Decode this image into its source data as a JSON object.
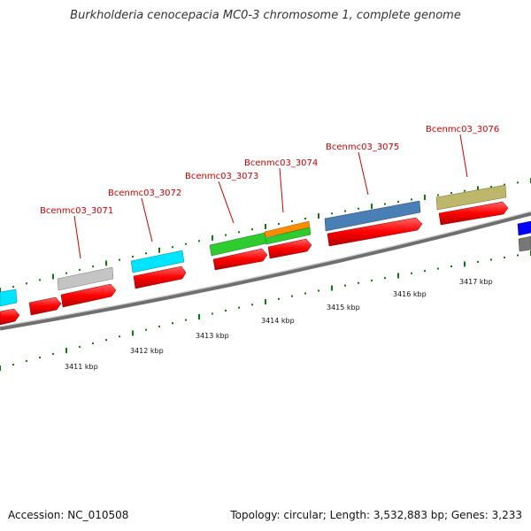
{
  "title": "Burkholderia cenocepacia MC0-3 chromosome 1, complete genome",
  "footer": {
    "accession": "Accession: NC_010508",
    "summary": "Topology: circular; Length: 3,532,883 bp; Genes: 3,233"
  },
  "ruler_labels": [
    "3411 kbp",
    "3412 kbp",
    "3413 kbp",
    "3414 kbp",
    "3415 kbp",
    "3416 kbp",
    "3417 kbp"
  ],
  "gene_labels": [
    "Bcenmc03_3071",
    "Bcenmc03_3072",
    "Bcenmc03_3073",
    "Bcenmc03_3074",
    "Bcenmc03_3075",
    "Bcenmc03_3076"
  ],
  "colors": {
    "cds": "#ff0000",
    "backbone": "#7a7a7a",
    "ticks": "#0a7a0a",
    "label": "#cc0000",
    "cyan": "#00e5ff",
    "gray": "#bbbbbb",
    "green": "#2ecc2e",
    "orange": "#ff8c00",
    "steelblue": "#4a7fb5",
    "khaki": "#bdb76b",
    "blue": "#0000ff"
  }
}
